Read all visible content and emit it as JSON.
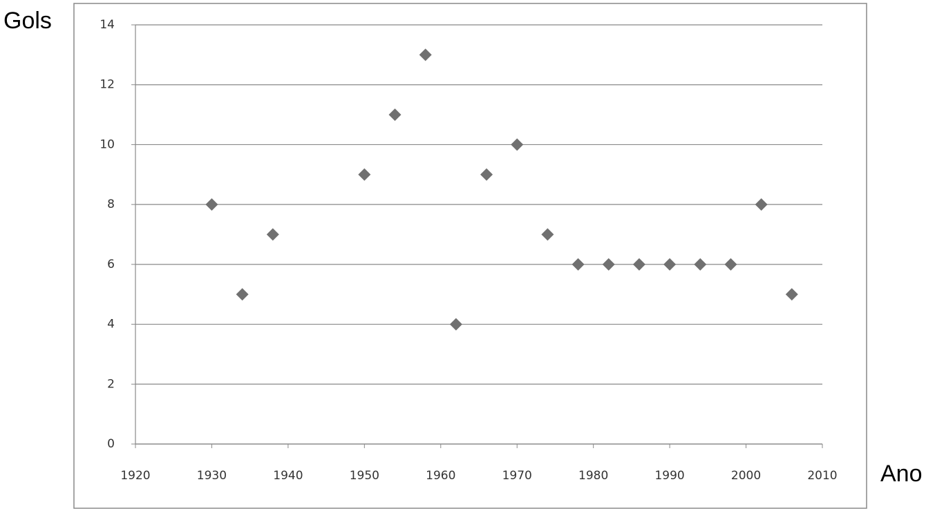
{
  "chart_data": {
    "type": "scatter",
    "y_label": "Gols",
    "x_label": "Ano",
    "x": [
      1930,
      1934,
      1938,
      1950,
      1954,
      1958,
      1962,
      1966,
      1970,
      1974,
      1978,
      1982,
      1986,
      1990,
      1994,
      1998,
      2002,
      2006
    ],
    "values": [
      8,
      5,
      7,
      9,
      11,
      13,
      4,
      9,
      10,
      7,
      6,
      6,
      6,
      6,
      6,
      6,
      8,
      5
    ],
    "color": "#707070",
    "xlim": [
      1920,
      2010
    ],
    "xticks": [
      1920,
      1930,
      1940,
      1950,
      1960,
      1970,
      1980,
      1990,
      2000,
      2010
    ],
    "ylim": [
      0,
      14
    ],
    "yticks": [
      0,
      2,
      4,
      6,
      8,
      10,
      12,
      14
    ],
    "grid": true
  }
}
